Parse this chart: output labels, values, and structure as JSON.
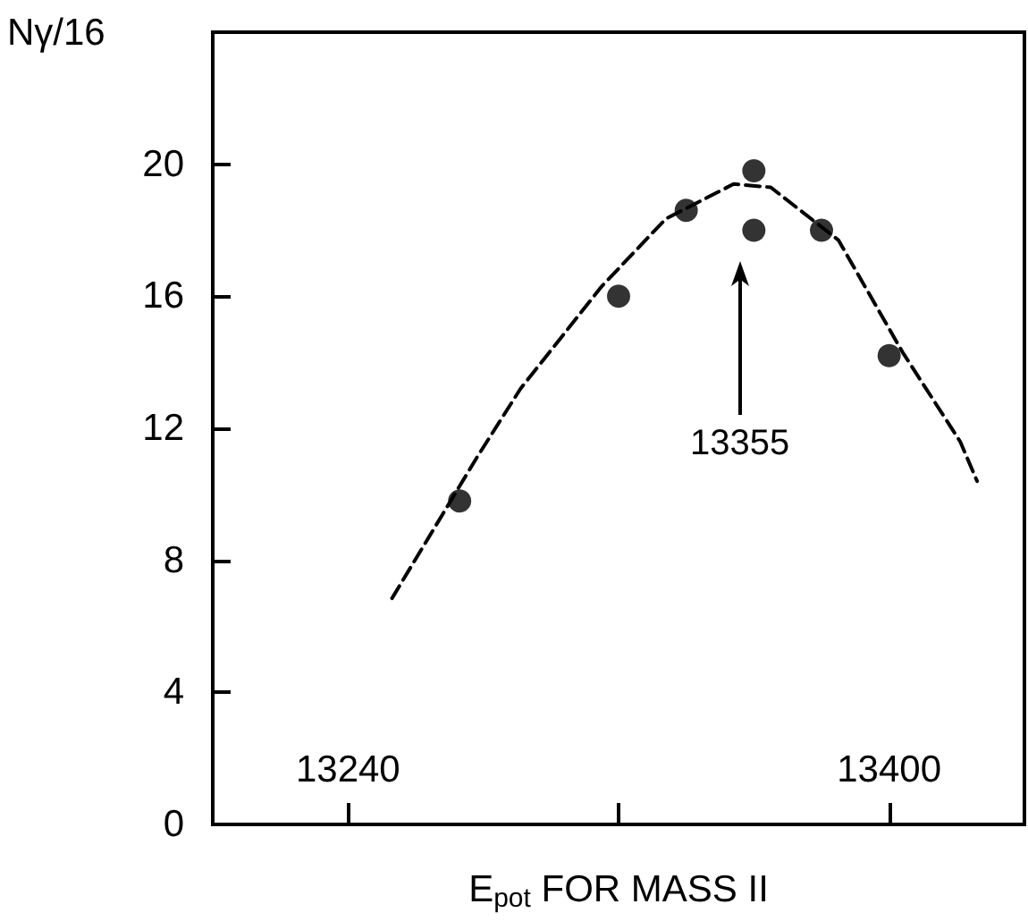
{
  "chart_data": {
    "type": "scatter",
    "xlabel": "E$_{pot}$ FOR MASS II",
    "ylabel": "Nγ/16",
    "xlim": [
      13200,
      13440
    ],
    "xticks": [
      13240,
      {
        "value": 13320,
        "label": null
      },
      13400
    ],
    "ylim": [
      0,
      24
    ],
    "yticks": [
      0,
      4,
      8,
      12,
      16,
      20,
      {
        "value": 24,
        "label": null
      }
    ],
    "grid": false,
    "annotations": [
      "13355"
    ],
    "series": [
      {
        "color": "#000000",
        "marker": "circle",
        "x": [
          13273,
          13320,
          13340,
          13360,
          13360,
          13380,
          13400
        ],
        "values": [
          9.8,
          16.0,
          18.6,
          19.8,
          18.0,
          18.0,
          14.2
        ]
      },
      {
        "type": "line",
        "color": "#000000",
        "marker": "none",
        "line_style": "dashed",
        "x": [
          13253,
          13278,
          13291,
          13315,
          13334,
          13354,
          13365,
          13385,
          13404,
          13421,
          13426
        ],
        "values": [
          6.85,
          11.1,
          13.2,
          16.3,
          18.35,
          19.4,
          19.3,
          17.7,
          14.3,
          11.6,
          10.4
        ]
      }
    ]
  }
}
